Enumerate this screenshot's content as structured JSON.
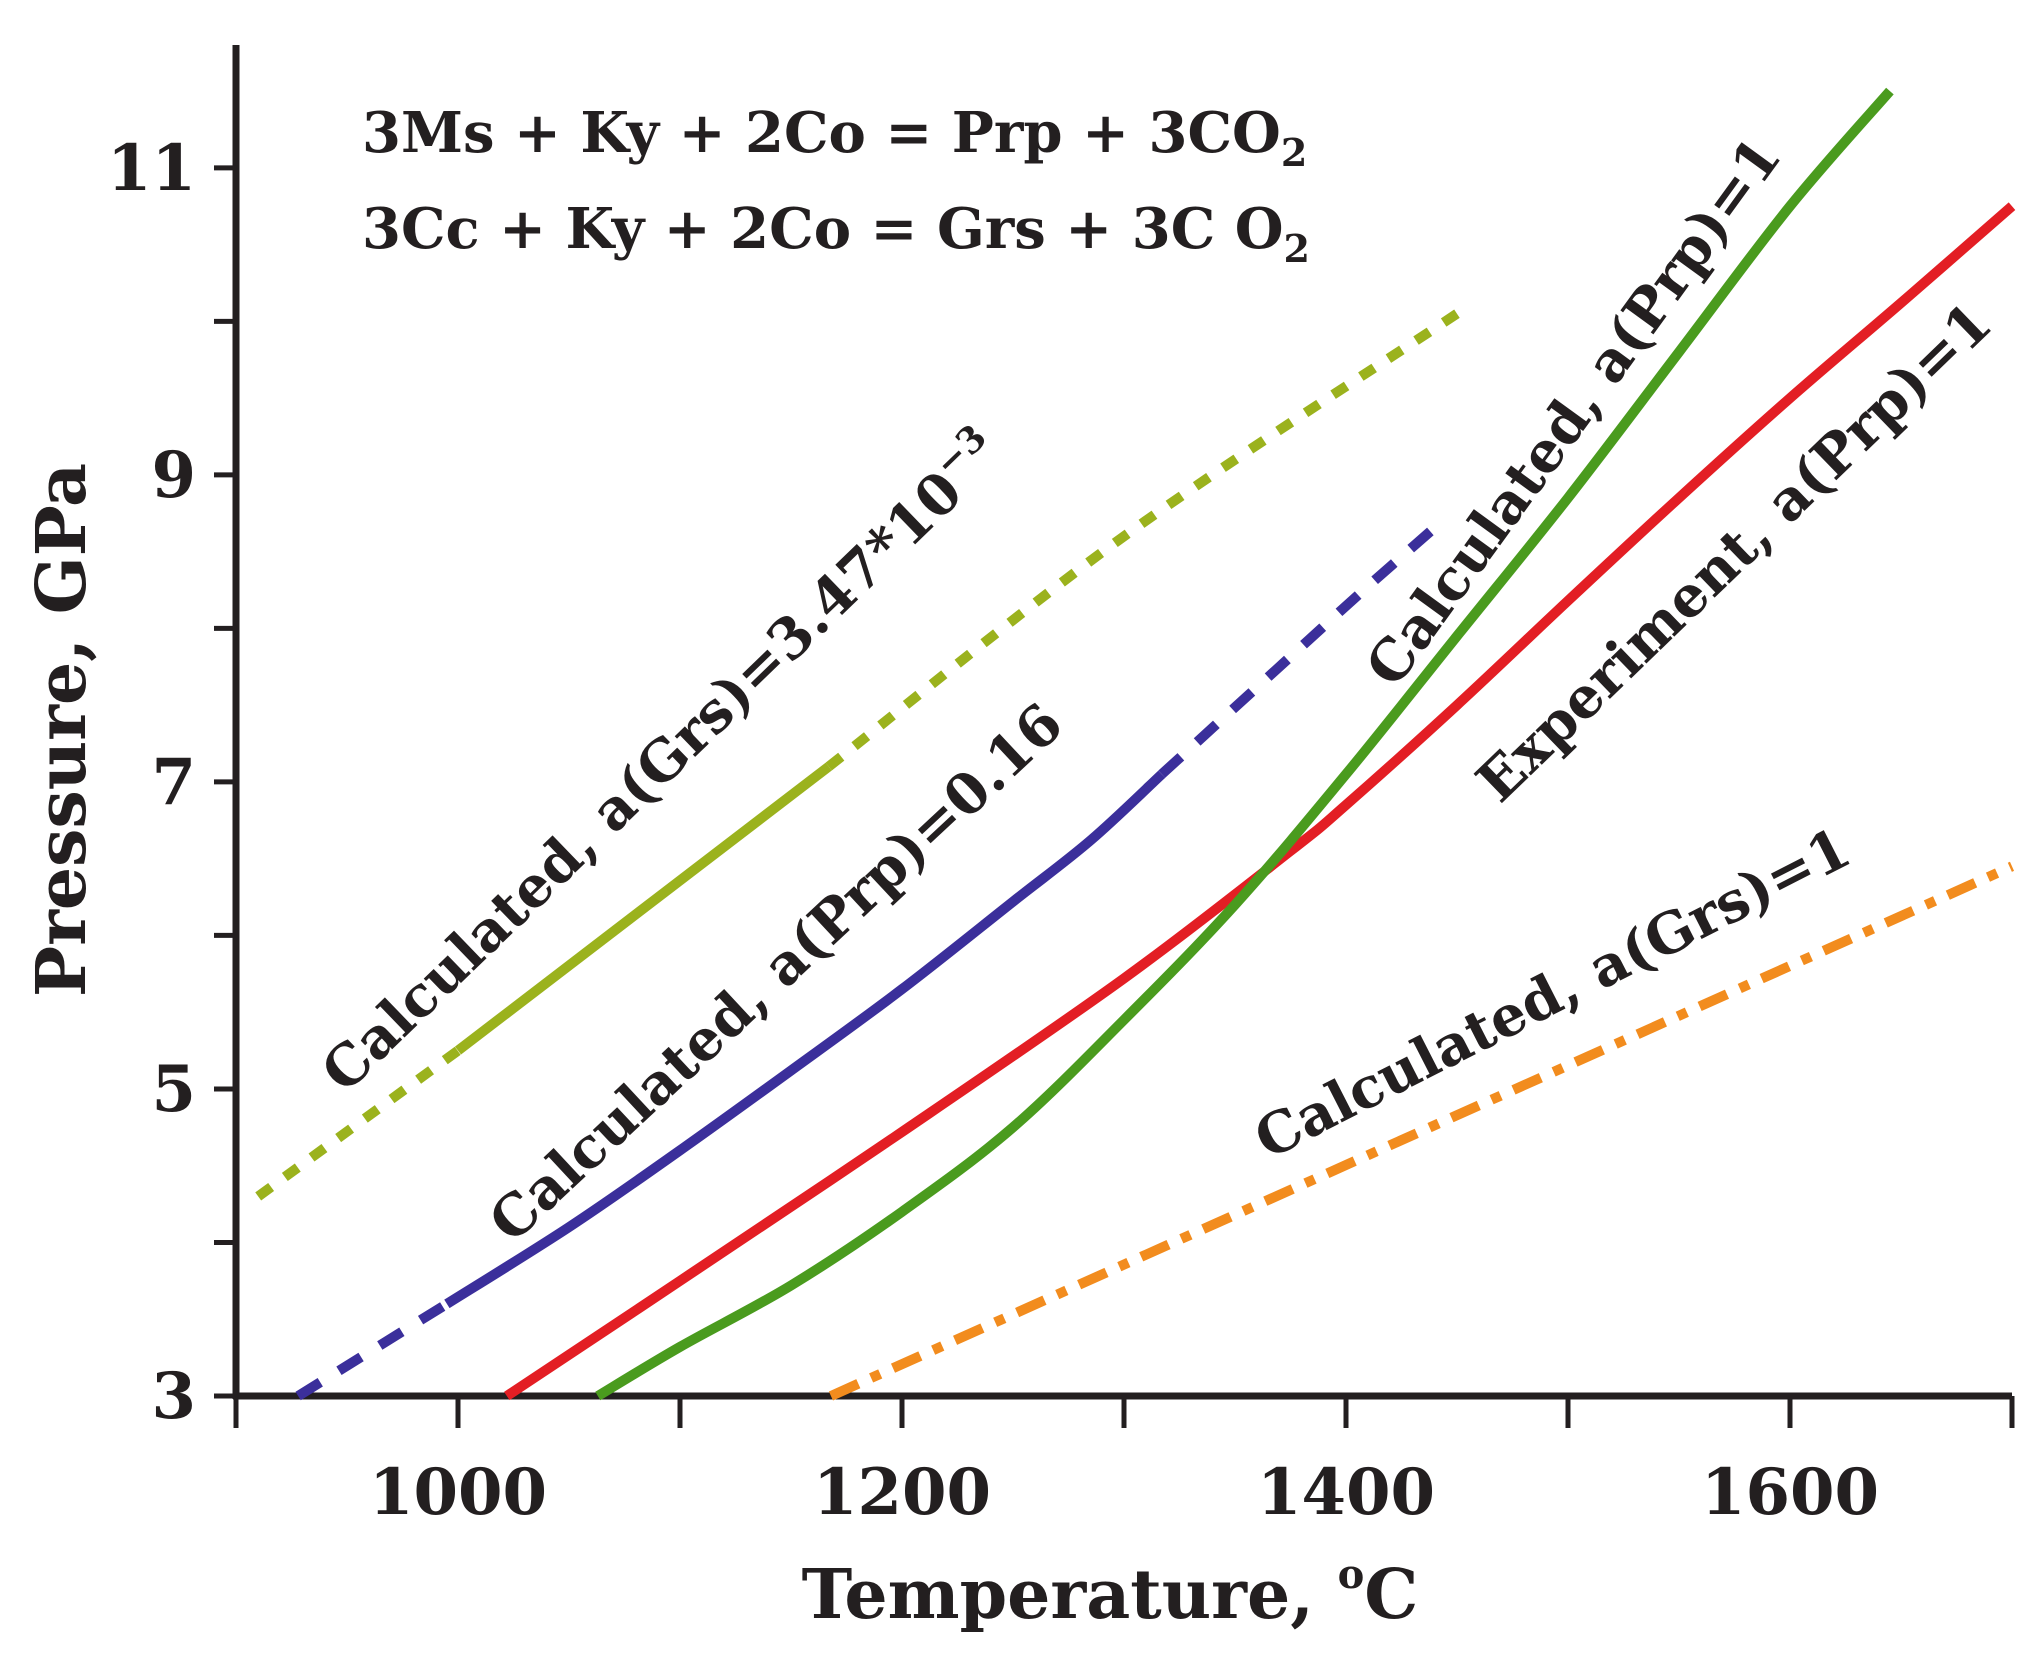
{
  "chart_data": {
    "type": "line",
    "xlabel": "Temperature, ",
    "xlabel_degree": "o",
    "xlabel_unit": "C",
    "ylabel": "Pressure, GPa",
    "xlim": [
      900,
      1700
    ],
    "ylim": [
      3,
      11.8
    ],
    "x_ticks": [
      1000,
      1200,
      1400,
      1600
    ],
    "x_tick_labels": [
      "1000",
      "1200",
      "1400",
      "1600"
    ],
    "x_minor_ticks": [
      900,
      1100,
      1300,
      1500,
      1700
    ],
    "y_ticks": [
      3,
      5,
      7,
      9,
      11
    ],
    "y_tick_labels": [
      "3",
      "5",
      "7",
      "9",
      "11"
    ],
    "y_minor_ticks": [
      4,
      6,
      8,
      10
    ],
    "equations": [
      {
        "text": "3Ms + Ky + 2Co = Prp + 3CO",
        "sub": "2"
      },
      {
        "text": "3Cc + Ky + 2Co = Grs + 3C O",
        "sub": "2"
      }
    ],
    "series": [
      {
        "name": "Calculated, a(Grs)=3.47*10",
        "name_sup": "−3",
        "color": "#9bb21d",
        "segments": [
          {
            "style": "dotted",
            "points": [
              [
                910,
                4.3
              ],
              [
                1000,
                5.25
              ]
            ]
          },
          {
            "style": "solid",
            "points": [
              [
                1000,
                5.25
              ],
              [
                1167,
                7.1
              ]
            ]
          },
          {
            "style": "dotted",
            "points": [
              [
                1167,
                7.1
              ],
              [
                1300,
                8.6
              ],
              [
                1450,
                10.05
              ]
            ]
          }
        ]
      },
      {
        "name": "Calculated, a(Prp)=0.16",
        "color": "#3b2f9b",
        "segments": [
          {
            "style": "dashed",
            "points": [
              [
                928,
                3.0
              ],
              [
                995,
                3.6
              ]
            ]
          },
          {
            "style": "solid",
            "points": [
              [
                995,
                3.6
              ],
              [
                1050,
                4.1
              ],
              [
                1100,
                4.6
              ],
              [
                1150,
                5.12
              ],
              [
                1200,
                5.65
              ],
              [
                1250,
                6.22
              ],
              [
                1285,
                6.62
              ],
              [
                1317,
                7.05
              ]
            ]
          },
          {
            "style": "dashed",
            "points": [
              [
                1317,
                7.05
              ],
              [
                1370,
                7.75
              ],
              [
                1408,
                8.25
              ],
              [
                1445,
                8.72
              ]
            ]
          }
        ]
      },
      {
        "name": "Experiment, a(Prp)=1",
        "color": "#e31e24",
        "segments": [
          {
            "style": "solid",
            "points": [
              [
                1022,
                3.0
              ],
              [
                1100,
                3.75
              ],
              [
                1200,
                4.72
              ],
              [
                1300,
                5.72
              ],
              [
                1375,
                6.55
              ],
              [
                1400,
                6.85
              ],
              [
                1450,
                7.5
              ],
              [
                1500,
                8.18
              ],
              [
                1550,
                8.85
              ],
              [
                1600,
                9.5
              ],
              [
                1650,
                10.12
              ],
              [
                1700,
                10.75
              ]
            ]
          }
        ]
      },
      {
        "name": "Calculated, a(Prp)=1",
        "color": "#4a9b1e",
        "segments": [
          {
            "style": "solid",
            "points": [
              [
                1063,
                3.0
              ],
              [
                1100,
                3.32
              ],
              [
                1150,
                3.72
              ],
              [
                1200,
                4.2
              ],
              [
                1250,
                4.75
              ],
              [
                1300,
                5.45
              ],
              [
                1350,
                6.2
              ],
              [
                1400,
                7.05
              ],
              [
                1450,
                7.95
              ],
              [
                1500,
                8.85
              ],
              [
                1550,
                9.8
              ],
              [
                1600,
                10.75
              ],
              [
                1645,
                11.5
              ]
            ]
          }
        ]
      },
      {
        "name": "Calculated, a(Grs)=1",
        "color": "#f28c1e",
        "segments": [
          {
            "style": "dashdot",
            "points": [
              [
                1168,
                3.0
              ],
              [
                1700,
                6.45
              ]
            ]
          }
        ]
      }
    ]
  }
}
